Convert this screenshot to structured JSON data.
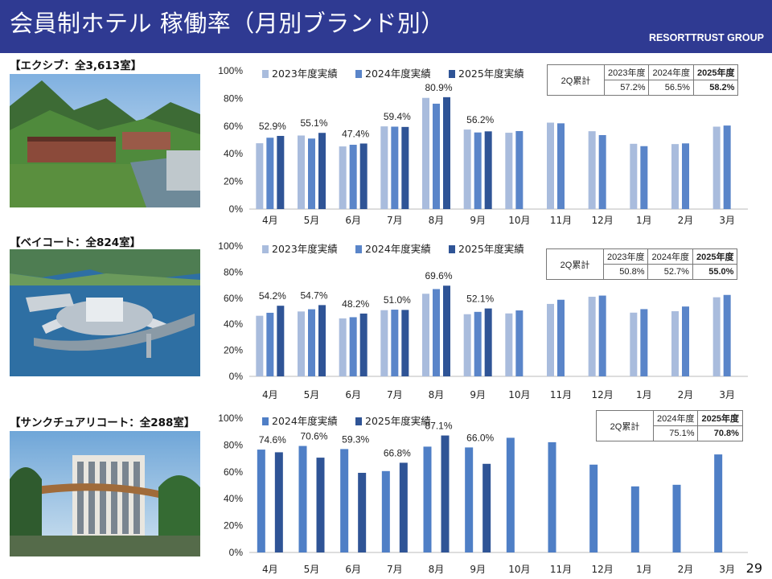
{
  "header": {
    "title": "会員制ホテル 稼働率（月別ブランド別）",
    "brand": "RESORTTRUST GROUP"
  },
  "page_number": "29",
  "sections": [
    {
      "label": "【エクシブ：全3,613室】",
      "photo": "mountain-resort-photo",
      "stats": {
        "header": "2Q累計",
        "years": [
          "2023年度",
          "2024年度",
          "2025年度"
        ],
        "values": [
          "57.2%",
          "56.5%",
          "58.2%"
        ]
      }
    },
    {
      "label": "【ベイコート：全824室】",
      "photo": "bay-resort-photo",
      "stats": {
        "header": "2Q累計",
        "years": [
          "2023年度",
          "2024年度",
          "2025年度"
        ],
        "values": [
          "50.8%",
          "52.7%",
          "55.0%"
        ]
      }
    },
    {
      "label": "【サンクチュアリコート：全288室】",
      "photo": "sanctuary-hotel-photo",
      "stats": {
        "header": "2Q累計",
        "years": [
          "2024年度",
          "2025年度"
        ],
        "values": [
          "75.1%",
          "70.8%"
        ]
      }
    }
  ],
  "chart_data": [
    {
      "type": "bar",
      "title": "エクシブ",
      "categories": [
        "4月",
        "5月",
        "6月",
        "7月",
        "8月",
        "9月",
        "10月",
        "11月",
        "12月",
        "1月",
        "2月",
        "3月"
      ],
      "series": [
        {
          "name": "2023年度実績",
          "color": "#a9bcdd",
          "values": [
            47.6,
            53.2,
            45.3,
            59.8,
            80.4,
            57.5,
            55.2,
            62.5,
            56.3,
            47.2,
            47.0,
            59.6
          ]
        },
        {
          "name": "2024年度実績",
          "color": "#5a85c9",
          "values": [
            51.6,
            51.0,
            46.5,
            59.6,
            76.2,
            55.4,
            56.4,
            62.0,
            53.5,
            45.5,
            47.5,
            60.4
          ]
        },
        {
          "name": "2025年度実績",
          "color": "#2f5496",
          "values": [
            52.9,
            55.1,
            47.4,
            59.4,
            80.9,
            56.2,
            null,
            null,
            null,
            null,
            null,
            null
          ]
        }
      ],
      "data_labels": [
        "52.9%",
        "55.1%",
        "47.4%",
        "59.4%",
        "80.9%",
        "56.2%"
      ],
      "ylim": [
        0,
        100
      ],
      "yticks": [
        "0%",
        "20%",
        "40%",
        "60%",
        "80%",
        "100%"
      ],
      "legend": "top-left"
    },
    {
      "type": "bar",
      "title": "ベイコート",
      "categories": [
        "4月",
        "5月",
        "6月",
        "7月",
        "8月",
        "9月",
        "10月",
        "11月",
        "12月",
        "1月",
        "2月",
        "3月"
      ],
      "series": [
        {
          "name": "2023年度実績",
          "color": "#a9bcdd",
          "values": [
            46.5,
            49.8,
            44.5,
            50.8,
            63.4,
            47.7,
            48.3,
            55.6,
            61.1,
            48.9,
            50.0,
            60.7
          ]
        },
        {
          "name": "2024年度実績",
          "color": "#5a85c9",
          "values": [
            48.8,
            51.5,
            45.4,
            51.2,
            67.0,
            49.5,
            50.6,
            58.8,
            62.0,
            51.6,
            53.6,
            62.5
          ]
        },
        {
          "name": "2025年度実績",
          "color": "#2f5496",
          "values": [
            54.2,
            54.7,
            48.2,
            51.0,
            69.6,
            52.1,
            null,
            null,
            null,
            null,
            null,
            null
          ]
        }
      ],
      "data_labels": [
        "54.2%",
        "54.7%",
        "48.2%",
        "51.0%",
        "69.6%",
        "52.1%"
      ],
      "ylim": [
        0,
        100
      ],
      "yticks": [
        "0%",
        "20%",
        "40%",
        "60%",
        "80%",
        "100%"
      ],
      "legend": "top-left"
    },
    {
      "type": "bar",
      "title": "サンクチュアリコート",
      "categories": [
        "4月",
        "5月",
        "6月",
        "7月",
        "8月",
        "9月",
        "10月",
        "11月",
        "12月",
        "1月",
        "2月",
        "3月"
      ],
      "series": [
        {
          "name": "2024年度実績",
          "color": "#4f7fc6",
          "values": [
            76.6,
            79.3,
            77.0,
            60.6,
            78.8,
            78.2,
            85.4,
            82.1,
            65.4,
            49.2,
            50.4,
            73.0
          ]
        },
        {
          "name": "2025年度実績",
          "color": "#2f5496",
          "values": [
            74.6,
            70.6,
            59.3,
            66.8,
            87.1,
            66.0,
            null,
            null,
            null,
            null,
            null,
            null
          ]
        }
      ],
      "data_labels": [
        "74.6%",
        "70.6%",
        "59.3%",
        "66.8%",
        "87.1%",
        "66.0%"
      ],
      "ylim": [
        0,
        100
      ],
      "yticks": [
        "0%",
        "20%",
        "40%",
        "60%",
        "80%",
        "100%"
      ],
      "legend": "top-left"
    }
  ]
}
